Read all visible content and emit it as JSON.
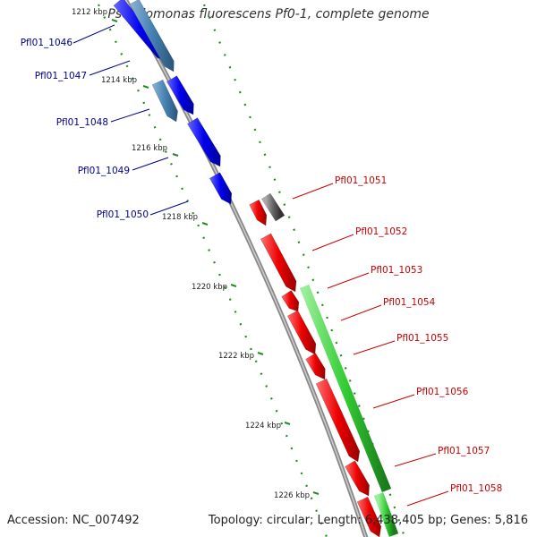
{
  "title": "Pseudomonas fluorescens Pf0-1, complete genome",
  "footer": {
    "accession": "Accession: NC_007492",
    "topology": "Topology: circular; Length: 6,438,405 bp; Genes: 5,816"
  },
  "colors": {
    "backbone": "#888888",
    "forward_cds": "#0000ee",
    "forward_cds_alt": "#4682b4",
    "reverse_cds": "#ee0000",
    "reverse_other": "#666666",
    "green_feature": "#33cc33",
    "tick_dots": "#228b22",
    "left_labels": "#00008b",
    "right_labels": "#cc0000"
  },
  "ticks": [
    "1212 kbp",
    "1214 kbp",
    "1216 kbp",
    "1218 kbp",
    "1220 kbp",
    "1222 kbp",
    "1224 kbp",
    "1226 kbp"
  ],
  "left_genes": [
    {
      "name": "Pfl01_1046"
    },
    {
      "name": "Pfl01_1047"
    },
    {
      "name": "Pfl01_1048"
    },
    {
      "name": "Pfl01_1049"
    },
    {
      "name": "Pfl01_1050"
    }
  ],
  "right_genes": [
    {
      "name": "Pfl01_1051"
    },
    {
      "name": "Pfl01_1052"
    },
    {
      "name": "Pfl01_1053"
    },
    {
      "name": "Pfl01_1054"
    },
    {
      "name": "Pfl01_1055"
    },
    {
      "name": "Pfl01_1056"
    },
    {
      "name": "Pfl01_1057"
    },
    {
      "name": "Pfl01_1058"
    }
  ]
}
